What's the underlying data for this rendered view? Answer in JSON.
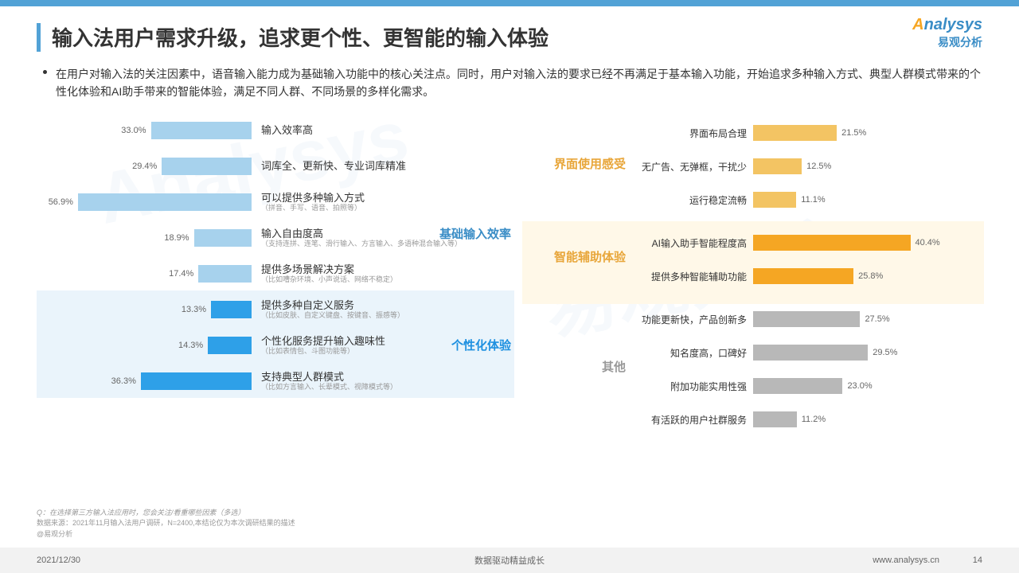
{
  "title": "输入法用户需求升级，追求更个性、更智能的输入体验",
  "logo_main_a": "A",
  "logo_main_rest": "nalysys",
  "logo_sub": "易观分析",
  "description": "在用户对输入法的关注因素中，语音输入能力成为基础输入功能中的核心关注点。同时，用户对输入法的要求已经不再满足于基本输入功能，开始追求多种输入方式、典型人群模式带来的个性化体验和AI助手带来的智能体验，满足不同人群、不同场景的多样化需求。",
  "left": {
    "max": 60,
    "groups": [
      {
        "name": "基础输入效率",
        "color": "#3a8dc6",
        "bar_color": "#a7d2ed",
        "bg": "#ffffff",
        "rows": [
          {
            "pct": 33.0,
            "label": "输入效率高",
            "sub": ""
          },
          {
            "pct": 29.4,
            "label": "词库全、更新快、专业词库精准",
            "sub": ""
          },
          {
            "pct": 56.9,
            "label": "可以提供多种输入方式",
            "sub": "（拼音、手写、语音、拍照等）"
          },
          {
            "pct": 18.9,
            "label": "输入自由度高",
            "sub": "（支持连拼、连笔、滑行输入、方言输入、多语种混合输入等）"
          },
          {
            "pct": 17.4,
            "label": "提供多场景解决方案",
            "sub": "（比如嘈杂环境、小声说话、网络不稳定）"
          }
        ]
      },
      {
        "name": "个性化体验",
        "color": "#1e90e0",
        "bar_color": "#2ea0e8",
        "bg": "#eaf4fb",
        "rows": [
          {
            "pct": 13.3,
            "label": "提供多种自定义服务",
            "sub": "（比如皮肤、自定义键盘、按键音、振感等）"
          },
          {
            "pct": 14.3,
            "label": "个性化服务提升输入趣味性",
            "sub": "（比如表情包、斗图功能等）"
          },
          {
            "pct": 36.3,
            "label": "支持典型人群模式",
            "sub": "（比如方言输入、长辈模式、视障模式等）"
          }
        ]
      }
    ]
  },
  "right": {
    "max": 45,
    "groups": [
      {
        "name": "界面使用感受",
        "color": "#e8a63a",
        "bar_color": "#f3c463",
        "rows": [
          {
            "pct": 21.5,
            "label": "界面布局合理"
          },
          {
            "pct": 12.5,
            "label": "无广告、无弹框，干扰少"
          },
          {
            "pct": 11.1,
            "label": "运行稳定流畅"
          }
        ]
      },
      {
        "name": "智能辅助体验",
        "color": "#e8a63a",
        "bar_color": "#f5a623",
        "highlight": true,
        "rows": [
          {
            "pct": 40.4,
            "label": "AI输入助手智能程度高"
          },
          {
            "pct": 25.8,
            "label": "提供多种智能辅助功能"
          }
        ]
      },
      {
        "name": "其他",
        "color": "#999999",
        "bar_color": "#b8b8b8",
        "rows": [
          {
            "pct": 27.5,
            "label": "功能更新快，产品创新多"
          },
          {
            "pct": 29.5,
            "label": "知名度高，口碑好"
          },
          {
            "pct": 23.0,
            "label": "附加功能实用性强"
          },
          {
            "pct": 11.2,
            "label": "有活跃的用户社群服务"
          }
        ]
      }
    ]
  },
  "footnote_q": "Q：在选择第三方输入法应用时，您会关注/看重哪些因素（多选）",
  "footnote_src": "数据来源：2021年11月输入法用户调研，N=2400,本结论仅为本次调研结果的描述",
  "footnote_handle": "@易观分析",
  "footer_date": "2021/12/30",
  "footer_motto": "数据驱动精益成长",
  "footer_url": "www.analysys.cn",
  "footer_page": "14",
  "watermark1": "Analysys",
  "watermark2": "易观分析"
}
